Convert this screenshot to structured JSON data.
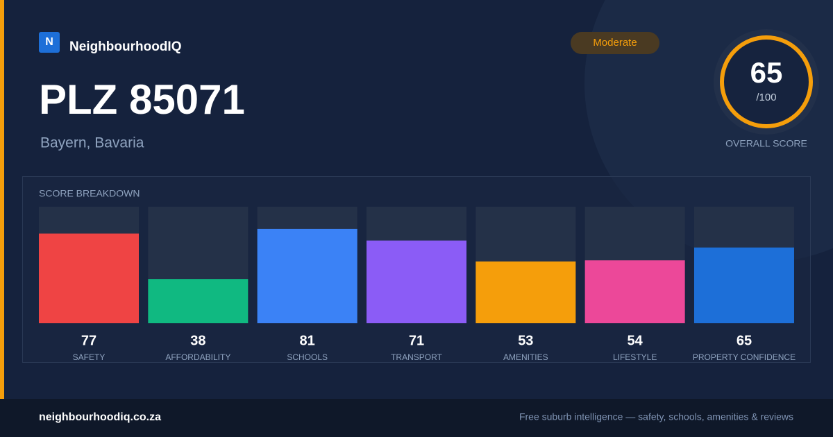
{
  "brand": {
    "logo": "N",
    "name": "NeighbourhoodIQ"
  },
  "title": "PLZ 85071",
  "subtitle": "Bayern, Bavaria",
  "badge": "Moderate",
  "overall": {
    "score": "65",
    "max": "/100",
    "label": "OVERALL SCORE"
  },
  "chart_data": {
    "type": "bar",
    "title": "SCORE BREAKDOWN",
    "categories": [
      "SAFETY",
      "AFFORDABILITY",
      "SCHOOLS",
      "TRANSPORT",
      "AMENITIES",
      "LIFESTYLE",
      "PROPERTY CONFIDENCE"
    ],
    "values": [
      77,
      38,
      81,
      71,
      53,
      54,
      65
    ],
    "colors": [
      "#ef4444",
      "#10b981",
      "#3b82f6",
      "#8b5cf6",
      "#f59e0b",
      "#ec4899",
      "#1d6fd8"
    ],
    "ylim": [
      0,
      100
    ]
  },
  "footer": {
    "site": "neighbourhoodiq.co.za",
    "tagline": "Free suburb intelligence — safety, schools, amenities & reviews"
  }
}
